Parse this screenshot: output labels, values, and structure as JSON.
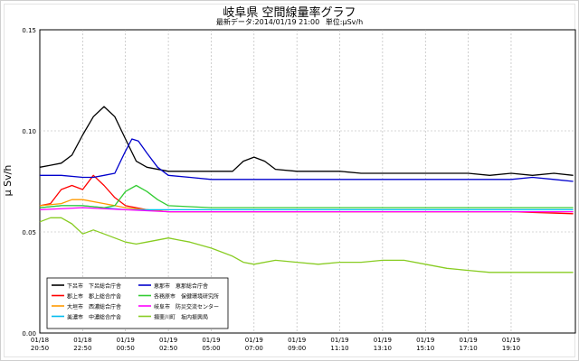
{
  "header": {
    "title": "岐阜県 空間線量率グラフ",
    "latest_label": "最新データ:2014/01/19 21:00",
    "unit_label": "単位:μSv/h"
  },
  "chart_data": {
    "type": "line",
    "title": "岐阜県 空間線量率グラフ",
    "xlabel": "",
    "ylabel": "μ Sv/h",
    "ylim": [
      0,
      0.15
    ],
    "yticks": [
      "0.00",
      "0.05",
      "0.10",
      "0.15"
    ],
    "xlim": [
      0,
      25
    ],
    "xticks": [
      {
        "x": 0,
        "top": "01/18",
        "bottom": "20:50"
      },
      {
        "x": 2,
        "top": "01/18",
        "bottom": "22:50"
      },
      {
        "x": 4,
        "top": "01/19",
        "bottom": "00:50"
      },
      {
        "x": 6,
        "top": "01/19",
        "bottom": "02:50"
      },
      {
        "x": 8,
        "top": "01/19",
        "bottom": "05:00"
      },
      {
        "x": 10,
        "top": "01/19",
        "bottom": "07:00"
      },
      {
        "x": 12,
        "top": "01/19",
        "bottom": "09:00"
      },
      {
        "x": 14,
        "top": "01/19",
        "bottom": "11:10"
      },
      {
        "x": 16,
        "top": "01/19",
        "bottom": "13:10"
      },
      {
        "x": 18,
        "top": "01/19",
        "bottom": "15:10"
      },
      {
        "x": 20,
        "top": "01/19",
        "bottom": "17:10"
      },
      {
        "x": 22,
        "top": "01/19",
        "bottom": "19:10"
      }
    ],
    "grid": true,
    "legend_position": "bottom-left",
    "series": [
      {
        "name": "下呂市　下呂総合庁舎",
        "color": "#000000",
        "points": [
          [
            0,
            0.082
          ],
          [
            0.5,
            0.083
          ],
          [
            1,
            0.084
          ],
          [
            1.5,
            0.088
          ],
          [
            2,
            0.098
          ],
          [
            2.5,
            0.107
          ],
          [
            3,
            0.112
          ],
          [
            3.5,
            0.107
          ],
          [
            4,
            0.096
          ],
          [
            4.5,
            0.085
          ],
          [
            5,
            0.082
          ],
          [
            6,
            0.08
          ],
          [
            7,
            0.08
          ],
          [
            8,
            0.08
          ],
          [
            9,
            0.08
          ],
          [
            9.5,
            0.085
          ],
          [
            10,
            0.087
          ],
          [
            10.5,
            0.085
          ],
          [
            11,
            0.081
          ],
          [
            12,
            0.08
          ],
          [
            13,
            0.08
          ],
          [
            14,
            0.08
          ],
          [
            15,
            0.079
          ],
          [
            16,
            0.079
          ],
          [
            17,
            0.079
          ],
          [
            18,
            0.079
          ],
          [
            19,
            0.079
          ],
          [
            20,
            0.079
          ],
          [
            21,
            0.078
          ],
          [
            22,
            0.079
          ],
          [
            23,
            0.078
          ],
          [
            24,
            0.079
          ],
          [
            24.9,
            0.078
          ]
        ]
      },
      {
        "name": "郡上市　郡上総合庁舎",
        "color": "#ff0000",
        "points": [
          [
            0,
            0.063
          ],
          [
            0.5,
            0.064
          ],
          [
            1,
            0.071
          ],
          [
            1.5,
            0.073
          ],
          [
            2,
            0.071
          ],
          [
            2.5,
            0.078
          ],
          [
            3,
            0.073
          ],
          [
            3.5,
            0.067
          ],
          [
            4,
            0.063
          ],
          [
            5,
            0.061
          ],
          [
            6,
            0.06
          ],
          [
            8,
            0.06
          ],
          [
            10,
            0.06
          ],
          [
            12,
            0.06
          ],
          [
            14,
            0.06
          ],
          [
            16,
            0.06
          ],
          [
            18,
            0.06
          ],
          [
            20,
            0.06
          ],
          [
            22,
            0.06
          ],
          [
            24.9,
            0.059
          ]
        ]
      },
      {
        "name": "大垣市　西濃総合庁舎",
        "color": "#ff9900",
        "points": [
          [
            0,
            0.063
          ],
          [
            1,
            0.064
          ],
          [
            1.5,
            0.066
          ],
          [
            2,
            0.066
          ],
          [
            3,
            0.064
          ],
          [
            4,
            0.062
          ],
          [
            5,
            0.061
          ],
          [
            6,
            0.06
          ],
          [
            8,
            0.06
          ],
          [
            10,
            0.06
          ],
          [
            12,
            0.06
          ],
          [
            14,
            0.06
          ],
          [
            16,
            0.06
          ],
          [
            18,
            0.06
          ],
          [
            20,
            0.06
          ],
          [
            22,
            0.06
          ],
          [
            24.9,
            0.06
          ]
        ]
      },
      {
        "name": "美濃市　中濃総合庁舎",
        "color": "#00bbee",
        "points": [
          [
            0,
            0.062
          ],
          [
            1,
            0.063
          ],
          [
            2,
            0.063
          ],
          [
            3,
            0.062
          ],
          [
            4,
            0.061
          ],
          [
            5,
            0.061
          ],
          [
            6,
            0.061
          ],
          [
            8,
            0.061
          ],
          [
            10,
            0.061
          ],
          [
            12,
            0.061
          ],
          [
            14,
            0.061
          ],
          [
            16,
            0.061
          ],
          [
            18,
            0.061
          ],
          [
            20,
            0.061
          ],
          [
            22,
            0.061
          ],
          [
            24.9,
            0.061
          ]
        ]
      },
      {
        "name": "恵那市　恵那総合庁舎",
        "color": "#0000cc",
        "points": [
          [
            0,
            0.078
          ],
          [
            1,
            0.078
          ],
          [
            2,
            0.077
          ],
          [
            2.5,
            0.077
          ],
          [
            3,
            0.078
          ],
          [
            3.5,
            0.079
          ],
          [
            4,
            0.09
          ],
          [
            4.3,
            0.096
          ],
          [
            4.6,
            0.095
          ],
          [
            5,
            0.089
          ],
          [
            5.5,
            0.082
          ],
          [
            6,
            0.078
          ],
          [
            7,
            0.077
          ],
          [
            8,
            0.076
          ],
          [
            10,
            0.076
          ],
          [
            12,
            0.076
          ],
          [
            14,
            0.076
          ],
          [
            16,
            0.076
          ],
          [
            18,
            0.076
          ],
          [
            20,
            0.076
          ],
          [
            22,
            0.076
          ],
          [
            23,
            0.077
          ],
          [
            24,
            0.076
          ],
          [
            24.9,
            0.075
          ]
        ]
      },
      {
        "name": "各務原市　保健環境研究所",
        "color": "#33cc33",
        "points": [
          [
            0,
            0.062
          ],
          [
            1,
            0.063
          ],
          [
            2,
            0.063
          ],
          [
            3,
            0.062
          ],
          [
            3.5,
            0.063
          ],
          [
            4,
            0.07
          ],
          [
            4.5,
            0.073
          ],
          [
            5,
            0.07
          ],
          [
            5.5,
            0.066
          ],
          [
            6,
            0.063
          ],
          [
            8,
            0.062
          ],
          [
            10,
            0.062
          ],
          [
            12,
            0.062
          ],
          [
            14,
            0.062
          ],
          [
            16,
            0.062
          ],
          [
            18,
            0.062
          ],
          [
            20,
            0.062
          ],
          [
            22,
            0.062
          ],
          [
            24.9,
            0.062
          ]
        ]
      },
      {
        "name": "岐阜市　防災交流センター",
        "color": "#ff00ff",
        "points": [
          [
            0,
            0.061
          ],
          [
            2,
            0.062
          ],
          [
            4,
            0.061
          ],
          [
            6,
            0.06
          ],
          [
            8,
            0.06
          ],
          [
            10,
            0.06
          ],
          [
            12,
            0.06
          ],
          [
            14,
            0.06
          ],
          [
            16,
            0.06
          ],
          [
            18,
            0.06
          ],
          [
            20,
            0.06
          ],
          [
            22,
            0.06
          ],
          [
            24.9,
            0.06
          ]
        ]
      },
      {
        "name": "揖斐川町　坂内振興局",
        "color": "#88cc22",
        "points": [
          [
            0,
            0.055
          ],
          [
            0.5,
            0.057
          ],
          [
            1,
            0.057
          ],
          [
            1.5,
            0.054
          ],
          [
            2,
            0.049
          ],
          [
            2.5,
            0.051
          ],
          [
            3,
            0.049
          ],
          [
            3.5,
            0.047
          ],
          [
            4,
            0.045
          ],
          [
            4.5,
            0.044
          ],
          [
            5,
            0.045
          ],
          [
            6,
            0.047
          ],
          [
            6.5,
            0.046
          ],
          [
            7,
            0.045
          ],
          [
            8,
            0.042
          ],
          [
            9,
            0.038
          ],
          [
            9.5,
            0.035
          ],
          [
            10,
            0.034
          ],
          [
            11,
            0.036
          ],
          [
            12,
            0.035
          ],
          [
            13,
            0.034
          ],
          [
            14,
            0.035
          ],
          [
            15,
            0.035
          ],
          [
            16,
            0.036
          ],
          [
            17,
            0.036
          ],
          [
            18,
            0.034
          ],
          [
            19,
            0.032
          ],
          [
            20,
            0.031
          ],
          [
            21,
            0.03
          ],
          [
            22,
            0.03
          ],
          [
            23,
            0.03
          ],
          [
            24,
            0.03
          ],
          [
            24.9,
            0.03
          ]
        ]
      }
    ]
  },
  "legend": {
    "left": [
      0,
      1,
      2,
      3
    ],
    "right": [
      4,
      5,
      6,
      7
    ]
  }
}
